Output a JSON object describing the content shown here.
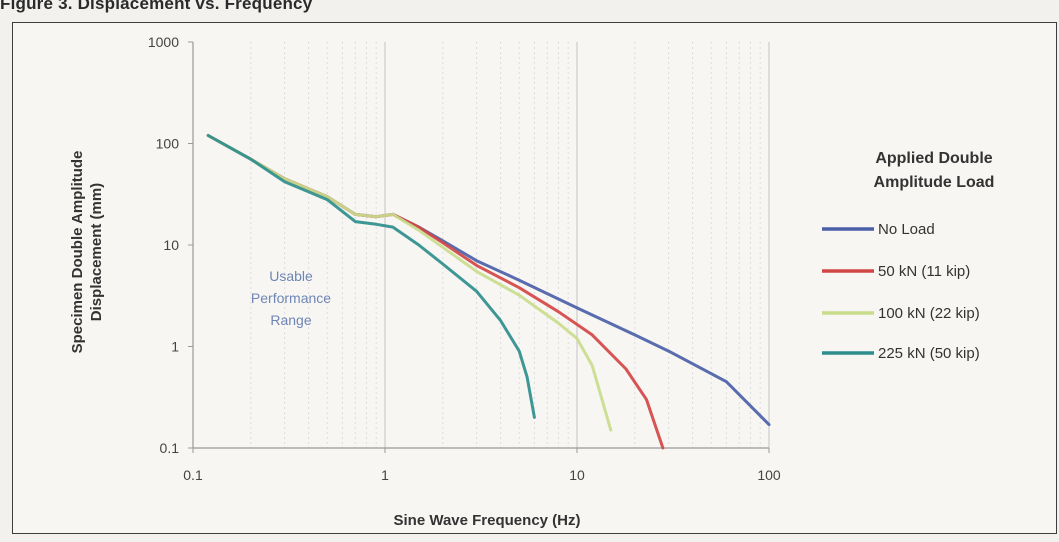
{
  "caption": "Figure 3. Displacement vs. Frequency",
  "chart_data": {
    "type": "line",
    "xscale": "log",
    "yscale": "log",
    "xlim": [
      0.1,
      100
    ],
    "ylim": [
      0.1,
      1000
    ],
    "xticks": [
      "0.1",
      "1",
      "10",
      "100"
    ],
    "yticks": [
      "1000",
      "100",
      "10",
      "1",
      "0.1"
    ],
    "xlabel": "Sine Wave Frequency (Hz)",
    "ylabel_line1": "Specimen Double Amplitude",
    "ylabel_line2": "Displacement (mm)",
    "grid": "vertical, light",
    "legend_position": "right",
    "legend_title_line1": "Applied Double",
    "legend_title_line2": "Amplitude Load",
    "annotation": [
      "Usable",
      "Performance",
      "Range"
    ],
    "series": [
      {
        "name": "No Load",
        "color": "#4a5fa8",
        "points": [
          [
            0.12,
            120
          ],
          [
            0.2,
            70
          ],
          [
            0.3,
            45
          ],
          [
            0.5,
            30
          ],
          [
            0.7,
            20
          ],
          [
            0.9,
            19
          ],
          [
            1.1,
            20
          ],
          [
            1.5,
            15
          ],
          [
            2,
            11
          ],
          [
            3,
            7
          ],
          [
            5,
            4.5
          ],
          [
            10,
            2.4
          ],
          [
            20,
            1.3
          ],
          [
            30,
            0.9
          ],
          [
            60,
            0.45
          ],
          [
            100,
            0.17
          ]
        ]
      },
      {
        "name": "50 kN (11 kip)",
        "color": "#d24545",
        "points": [
          [
            0.12,
            120
          ],
          [
            0.2,
            70
          ],
          [
            0.3,
            45
          ],
          [
            0.5,
            30
          ],
          [
            0.7,
            20
          ],
          [
            0.9,
            19
          ],
          [
            1.1,
            20
          ],
          [
            1.5,
            15
          ],
          [
            2,
            10.5
          ],
          [
            3,
            6.3
          ],
          [
            5,
            3.8
          ],
          [
            8,
            2.2
          ],
          [
            12,
            1.3
          ],
          [
            18,
            0.6
          ],
          [
            23,
            0.3
          ],
          [
            28,
            0.1
          ]
        ]
      },
      {
        "name": "100 kN (22 kip)",
        "color": "#c9dc8c",
        "points": [
          [
            0.12,
            120
          ],
          [
            0.2,
            70
          ],
          [
            0.3,
            45
          ],
          [
            0.5,
            30
          ],
          [
            0.7,
            20
          ],
          [
            0.9,
            19
          ],
          [
            1.1,
            20
          ],
          [
            1.5,
            14
          ],
          [
            2,
            9.5
          ],
          [
            3,
            5.5
          ],
          [
            5,
            3.2
          ],
          [
            8,
            1.7
          ],
          [
            10,
            1.2
          ],
          [
            12,
            0.65
          ],
          [
            13.5,
            0.3
          ],
          [
            15,
            0.15
          ]
        ]
      },
      {
        "name": "225 kN (50 kip)",
        "color": "#2e8e8c",
        "points": [
          [
            0.12,
            120
          ],
          [
            0.2,
            70
          ],
          [
            0.3,
            42
          ],
          [
            0.5,
            28
          ],
          [
            0.7,
            17
          ],
          [
            0.9,
            16
          ],
          [
            1.1,
            15
          ],
          [
            1.5,
            10
          ],
          [
            2,
            6.5
          ],
          [
            3,
            3.5
          ],
          [
            4,
            1.8
          ],
          [
            5,
            0.9
          ],
          [
            5.5,
            0.5
          ],
          [
            6,
            0.2
          ]
        ]
      }
    ]
  }
}
